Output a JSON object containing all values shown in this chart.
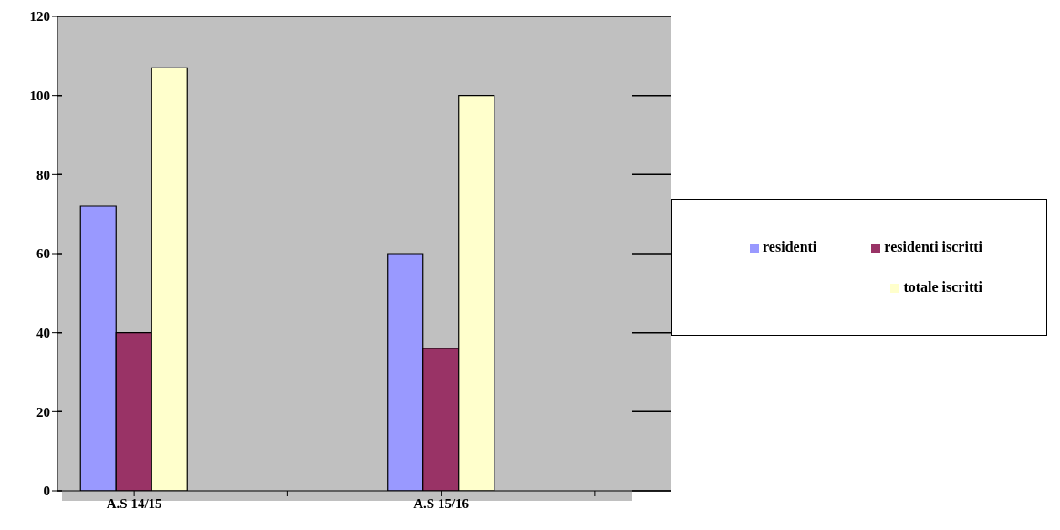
{
  "chart_data": {
    "type": "bar",
    "categories": [
      "A.S 14/15",
      null,
      "A.S 15/16",
      null
    ],
    "series": [
      {
        "name": "residenti",
        "color": "#9999ff",
        "values": [
          72,
          null,
          60,
          null
        ]
      },
      {
        "name": "residenti iscritti",
        "color": "#993366",
        "values": [
          40,
          null,
          36,
          null
        ]
      },
      {
        "name": "totale iscritti",
        "color": "#ffffcc",
        "values": [
          107,
          null,
          100,
          null
        ]
      }
    ],
    "ylim": [
      0,
      120
    ],
    "yticks": [
      0,
      20,
      40,
      60,
      80,
      100,
      120
    ],
    "grid": "y",
    "legend": "right"
  }
}
